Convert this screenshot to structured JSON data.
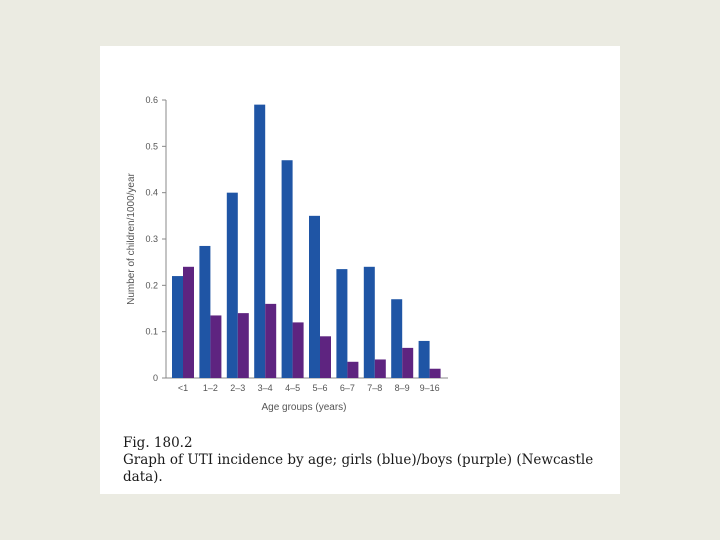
{
  "chart_data": {
    "type": "bar",
    "categories": [
      "<1",
      "1–2",
      "2–3",
      "3–4",
      "4–5",
      "5–6",
      "6–7",
      "7–8",
      "8–9",
      "9–16"
    ],
    "series": [
      {
        "values": [
          0.22,
          0.285,
          0.4,
          0.59,
          0.47,
          0.35,
          0.235,
          0.24,
          0.17,
          0.08
        ],
        "color": "#1f55a5"
      },
      {
        "values": [
          0.24,
          0.135,
          0.14,
          0.16,
          0.12,
          0.09,
          0.035,
          0.04,
          0.065,
          0.02
        ],
        "color": "#5e2480"
      }
    ],
    "xlabel": "Age groups (years)",
    "ylabel": "Number of children/1000/year",
    "ylim": [
      0,
      0.6
    ],
    "yticks": [
      "0",
      "0.1",
      "0.2",
      "0.3",
      "0.4",
      "0.5",
      "0.6"
    ],
    "grid": false
  },
  "caption": {
    "figure_label": "Fig. 180.2",
    "line1": "Graph of UTI incidence by age; girls (blue)/boys (purple) (Newcastle",
    "line2": "data)."
  }
}
